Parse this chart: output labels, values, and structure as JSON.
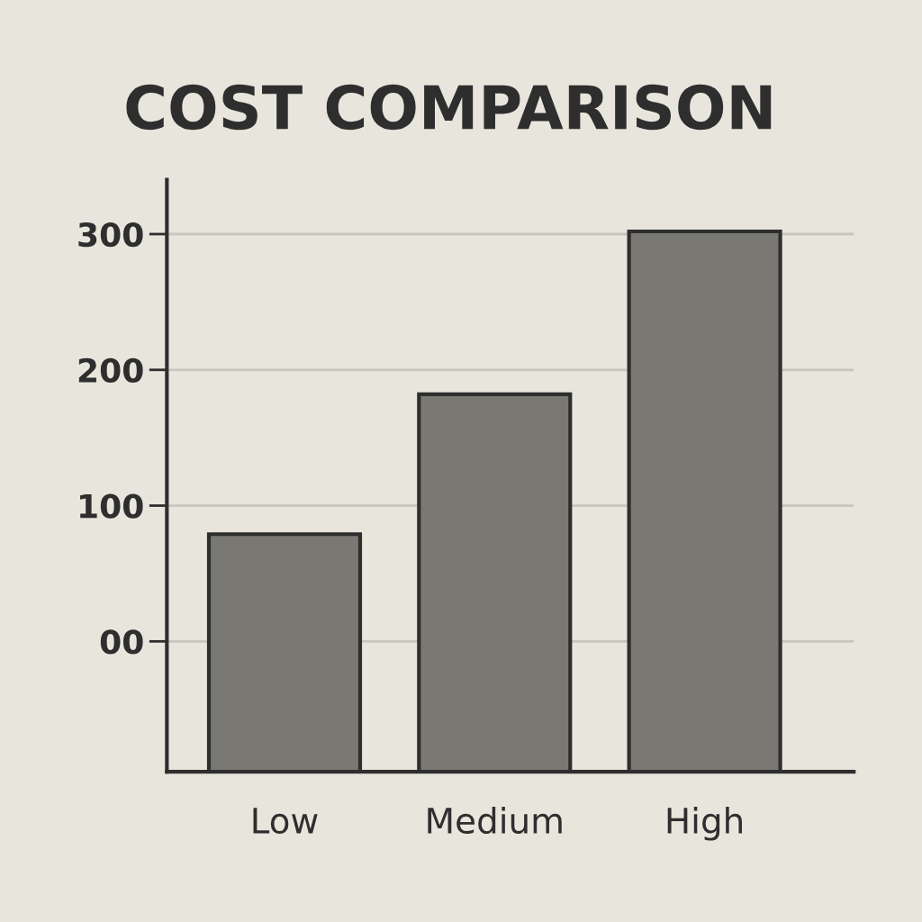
{
  "chart_data": {
    "type": "bar",
    "title": "COST COMPARISON",
    "categories": [
      "Low",
      "Medium",
      "High"
    ],
    "values": [
      175,
      278,
      398
    ],
    "base": [
      -96,
      -96,
      -96
    ],
    "color": "#7a7873",
    "ylim": [
      -96,
      340
    ],
    "yticks": [
      {
        "value": 0,
        "label": "00"
      },
      100,
      200,
      300
    ],
    "grid": "y"
  }
}
